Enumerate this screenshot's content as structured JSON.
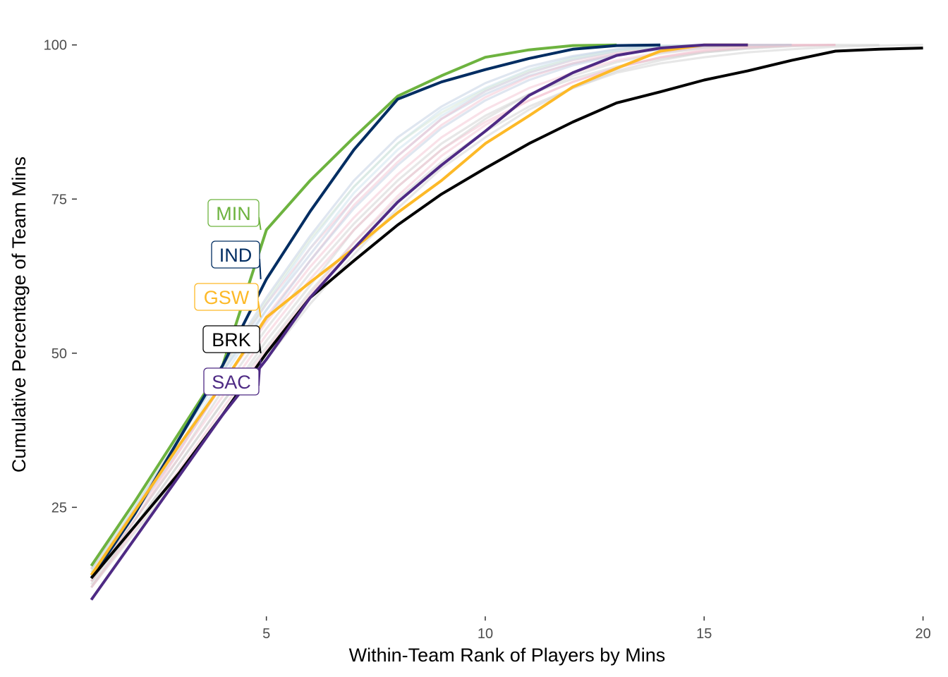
{
  "chart_data": {
    "type": "line",
    "title": "",
    "xlabel": "Within-Team Rank of Players by Mins",
    "ylabel": "Cumulative Percentage of Team Mins",
    "xlim": [
      0.8,
      20.2
    ],
    "ylim": [
      8,
      105
    ],
    "x_ticks": [
      5,
      10,
      15,
      20
    ],
    "y_ticks": [
      25,
      50,
      75,
      100
    ],
    "grid": false,
    "legend": "none",
    "highlighted_series": [
      {
        "name": "MIN",
        "color": "#6db33f",
        "x": [
          1,
          2,
          3,
          4,
          5,
          6,
          7,
          8,
          9,
          10,
          11,
          12,
          13
        ],
        "y": [
          15.5,
          26,
          37,
          48,
          70,
          78,
          85,
          91.7,
          95,
          98,
          99.2,
          99.9,
          100
        ]
      },
      {
        "name": "IND",
        "color": "#002d62",
        "x": [
          1,
          2,
          3,
          4,
          5,
          6,
          7,
          8,
          9,
          10,
          11,
          12,
          13,
          14
        ],
        "y": [
          13.5,
          24,
          36,
          48,
          62,
          73,
          83,
          91.2,
          94,
          96,
          97.8,
          99.3,
          99.9,
          100
        ]
      },
      {
        "name": "GSW",
        "color": "#fdb927",
        "x": [
          1,
          2,
          3,
          4,
          5,
          6,
          7,
          8,
          9,
          10,
          11,
          12,
          13,
          14,
          15,
          16
        ],
        "y": [
          14,
          24.5,
          35,
          45,
          55.8,
          61.5,
          67,
          72.8,
          78,
          84,
          88.5,
          93.2,
          96.2,
          99,
          100,
          100
        ]
      },
      {
        "name": "BRK",
        "color": "#000000",
        "x": [
          1,
          2,
          3,
          4,
          5,
          6,
          7,
          8,
          9,
          10,
          11,
          12,
          13,
          14,
          15,
          16,
          17,
          18,
          19,
          20
        ],
        "y": [
          13.5,
          22,
          30.5,
          40,
          50,
          59,
          65,
          70.8,
          75.8,
          80,
          84,
          87.5,
          90.6,
          92.4,
          94.3,
          95.8,
          97.5,
          99,
          99.3,
          99.5
        ]
      },
      {
        "name": "SAC",
        "color": "#4e2a84",
        "x": [
          1,
          2,
          3,
          4,
          5,
          6,
          7,
          8,
          9,
          10,
          11,
          12,
          13,
          14,
          15,
          16
        ],
        "y": [
          10,
          20,
          30,
          40,
          49,
          59,
          67,
          74.5,
          80.5,
          86,
          91.8,
          95.5,
          98.3,
          99.5,
          100,
          100
        ]
      }
    ],
    "background_series": [
      {
        "color": "#b8c8dd",
        "x": [
          1,
          2,
          3,
          4,
          5,
          6,
          7,
          8,
          9,
          10,
          11,
          12,
          13,
          14,
          15,
          16,
          17
        ],
        "y": [
          14,
          25,
          36,
          47,
          57,
          66,
          75,
          82,
          88,
          92,
          95,
          97,
          98.5,
          99.3,
          99.8,
          100,
          100
        ]
      },
      {
        "color": "#f2bccb",
        "x": [
          1,
          2,
          3,
          4,
          5,
          6,
          7,
          8,
          9,
          10,
          11,
          12,
          13,
          14,
          15,
          16,
          17,
          18
        ],
        "y": [
          15,
          26,
          37,
          48,
          58,
          67,
          75,
          82,
          88,
          92.5,
          95.5,
          97.5,
          98.8,
          99.5,
          99.8,
          100,
          100,
          100
        ]
      },
      {
        "color": "#c9c9c9",
        "x": [
          1,
          2,
          3,
          4,
          5,
          6,
          7,
          8,
          9,
          10,
          11,
          12,
          13,
          14,
          15,
          16,
          17,
          18,
          19,
          20
        ],
        "y": [
          12,
          22,
          32,
          42,
          51,
          60,
          68,
          75,
          81,
          86,
          90,
          93,
          95.5,
          97,
          98,
          98.8,
          99.3,
          99.7,
          99.9,
          100
        ]
      },
      {
        "color": "#c6ddec",
        "x": [
          1,
          2,
          3,
          4,
          5,
          6,
          7,
          8,
          9,
          10,
          11,
          12,
          13,
          14,
          15
        ],
        "y": [
          14.5,
          25,
          36,
          47,
          58,
          68,
          77,
          84,
          89.5,
          93,
          96,
          98,
          99.3,
          99.9,
          100
        ]
      },
      {
        "color": "#f2bccb",
        "x": [
          1,
          2,
          3,
          4,
          5,
          6,
          7,
          8,
          9,
          10,
          11,
          12,
          13,
          14,
          15,
          16
        ],
        "y": [
          13,
          23,
          34,
          45,
          56,
          65,
          74,
          81,
          87,
          91.5,
          94.8,
          97,
          98.5,
          99.5,
          100,
          100
        ]
      },
      {
        "color": "#c9c9c9",
        "x": [
          1,
          2,
          3,
          4,
          5,
          6,
          7,
          8,
          9,
          10,
          11,
          12,
          13,
          14,
          15,
          16,
          17,
          18,
          19
        ],
        "y": [
          12.5,
          22,
          32,
          42,
          52,
          61,
          70,
          77,
          83,
          88,
          92,
          94.5,
          96.5,
          97.8,
          98.8,
          99.4,
          99.8,
          100,
          100
        ]
      },
      {
        "color": "#b8c8dd",
        "x": [
          1,
          2,
          3,
          4,
          5,
          6,
          7,
          8,
          9,
          10,
          11,
          12,
          13,
          14,
          15,
          16
        ],
        "y": [
          15,
          26,
          37,
          48,
          59,
          69,
          78,
          85,
          90,
          93.8,
          96.5,
          98.2,
          99.3,
          99.8,
          100,
          100
        ]
      },
      {
        "color": "#f2bccb",
        "x": [
          1,
          2,
          3,
          4,
          5,
          6,
          7,
          8,
          9,
          10,
          11,
          12,
          13,
          14,
          15,
          16,
          17
        ],
        "y": [
          13.5,
          24,
          34,
          45,
          55,
          64,
          72,
          79,
          85,
          89.5,
          93,
          95.5,
          97.5,
          98.8,
          99.6,
          100,
          100
        ]
      },
      {
        "color": "#cfe3d0",
        "x": [
          1,
          2,
          3,
          4,
          5,
          6,
          7,
          8,
          9,
          10,
          11,
          12,
          13,
          14,
          15
        ],
        "y": [
          14.5,
          25.5,
          36.5,
          47.5,
          58.5,
          68.5,
          77,
          84,
          89,
          92.8,
          95.8,
          97.8,
          99,
          99.8,
          100
        ]
      },
      {
        "color": "#c9c9c9",
        "x": [
          1,
          2,
          3,
          4,
          5,
          6,
          7,
          8,
          9,
          10,
          11,
          12,
          13,
          14,
          15,
          16,
          17,
          18
        ],
        "y": [
          12,
          21,
          30,
          40,
          49,
          58,
          66,
          73.5,
          80,
          85,
          89.5,
          93,
          95.8,
          97.5,
          98.8,
          99.5,
          99.9,
          100
        ]
      },
      {
        "color": "#f2bccb",
        "x": [
          1,
          2,
          3,
          4,
          5,
          6,
          7,
          8,
          9,
          10,
          11,
          12,
          13,
          14,
          15,
          16,
          17,
          18
        ],
        "y": [
          13,
          23,
          33,
          43,
          53,
          62,
          70,
          77,
          83,
          87.5,
          91,
          94,
          96.3,
          98,
          99.2,
          99.8,
          100,
          100
        ]
      },
      {
        "color": "#c6ddec",
        "x": [
          1,
          2,
          3,
          4,
          5,
          6,
          7,
          8,
          9,
          10,
          11,
          12,
          13,
          14,
          15,
          16
        ],
        "y": [
          14,
          24.5,
          35,
          46,
          57,
          67,
          76,
          83,
          88.5,
          92.5,
          95.5,
          97.6,
          99,
          99.7,
          100,
          100
        ]
      },
      {
        "color": "#c9c9c9",
        "x": [
          1,
          2,
          3,
          4,
          5,
          6,
          7,
          8,
          9,
          10,
          11,
          12,
          13,
          14,
          15,
          16,
          17
        ],
        "y": [
          13,
          23,
          33,
          44,
          54,
          63,
          71,
          78,
          84,
          88.5,
          92,
          95,
          97.2,
          98.6,
          99.5,
          99.9,
          100
        ]
      },
      {
        "color": "#f2bccb",
        "x": [
          1,
          2,
          3,
          4,
          5,
          6,
          7,
          8,
          9,
          10,
          11,
          12,
          13,
          14,
          15,
          16,
          17,
          18
        ],
        "y": [
          12,
          21.5,
          31,
          41,
          50.5,
          59.5,
          68,
          75.5,
          82,
          87,
          91,
          94,
          96.3,
          98,
          99,
          99.6,
          99.9,
          100
        ]
      },
      {
        "color": "#b8c8dd",
        "x": [
          1,
          2,
          3,
          4,
          5,
          6,
          7,
          8,
          9,
          10,
          11,
          12,
          13,
          14,
          15,
          16,
          17
        ],
        "y": [
          14,
          24,
          34.5,
          45,
          55.5,
          65,
          73.5,
          80.5,
          86.5,
          91,
          94.3,
          96.7,
          98.3,
          99.3,
          99.8,
          100,
          100
        ]
      }
    ]
  }
}
